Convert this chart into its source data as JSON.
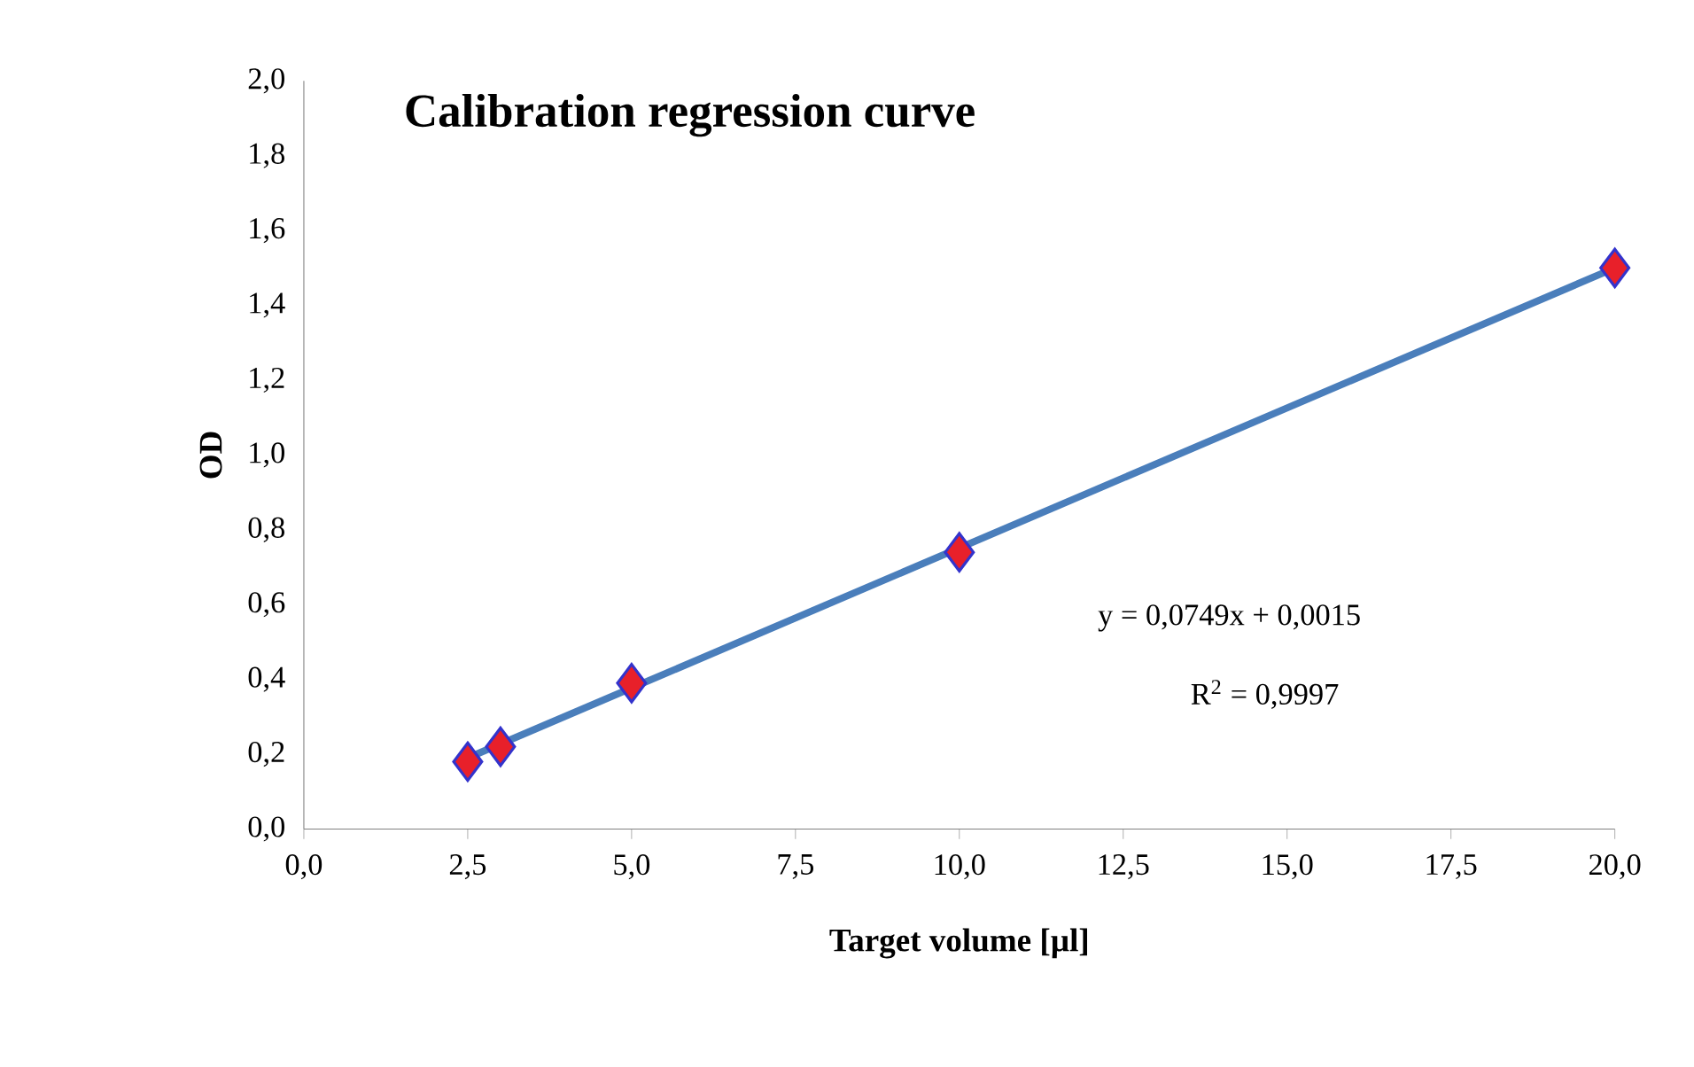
{
  "chart_data": {
    "type": "scatter",
    "title": "Calibration regression curve",
    "xlabel": "Target volume [µl]",
    "ylabel": "OD",
    "series": [
      {
        "type": "line",
        "color": "#4a7ebb",
        "x": [
          2.5,
          20
        ],
        "values": [
          0.19,
          1.5
        ],
        "marker": "none"
      },
      {
        "color": "#e8202a",
        "x": [
          2.5,
          3,
          5,
          10,
          20
        ],
        "values": [
          0.18,
          0.22,
          0.39,
          0.74,
          1.5
        ],
        "marker": "diamond"
      }
    ],
    "annotations": [
      "y = 0,0749x + 0,0015",
      "R$^{2}$ = 0,9997"
    ],
    "xlim": [
      0,
      20
    ],
    "ylim": [
      0,
      2
    ],
    "xticks": [
      {
        "value": 0,
        "label": "0,0"
      },
      {
        "value": 2.5,
        "label": "2,5"
      },
      {
        "value": 5,
        "label": "5,0"
      },
      {
        "value": 7.5,
        "label": "7,5"
      },
      {
        "value": 10,
        "label": "10,0"
      },
      {
        "value": 12.5,
        "label": "12,5"
      },
      {
        "value": 15,
        "label": "15,0"
      },
      {
        "value": 17.5,
        "label": "17,5"
      },
      {
        "value": 20,
        "label": "20,0"
      }
    ],
    "yticks": [
      {
        "value": 0,
        "label": "0,0"
      },
      {
        "value": 0.2,
        "label": "0,2"
      },
      {
        "value": 0.4,
        "label": "0,4"
      },
      {
        "value": 0.6,
        "label": "0,6"
      },
      {
        "value": 0.8,
        "label": "0,8"
      },
      {
        "value": 1,
        "label": "1,0"
      },
      {
        "value": 1.2,
        "label": "1,2"
      },
      {
        "value": 1.4,
        "label": "1,4"
      },
      {
        "value": 1.6,
        "label": "1,6"
      },
      {
        "value": 1.8,
        "label": "1,8"
      },
      {
        "value": 2,
        "label": "2,0"
      }
    ],
    "grid": false
  }
}
